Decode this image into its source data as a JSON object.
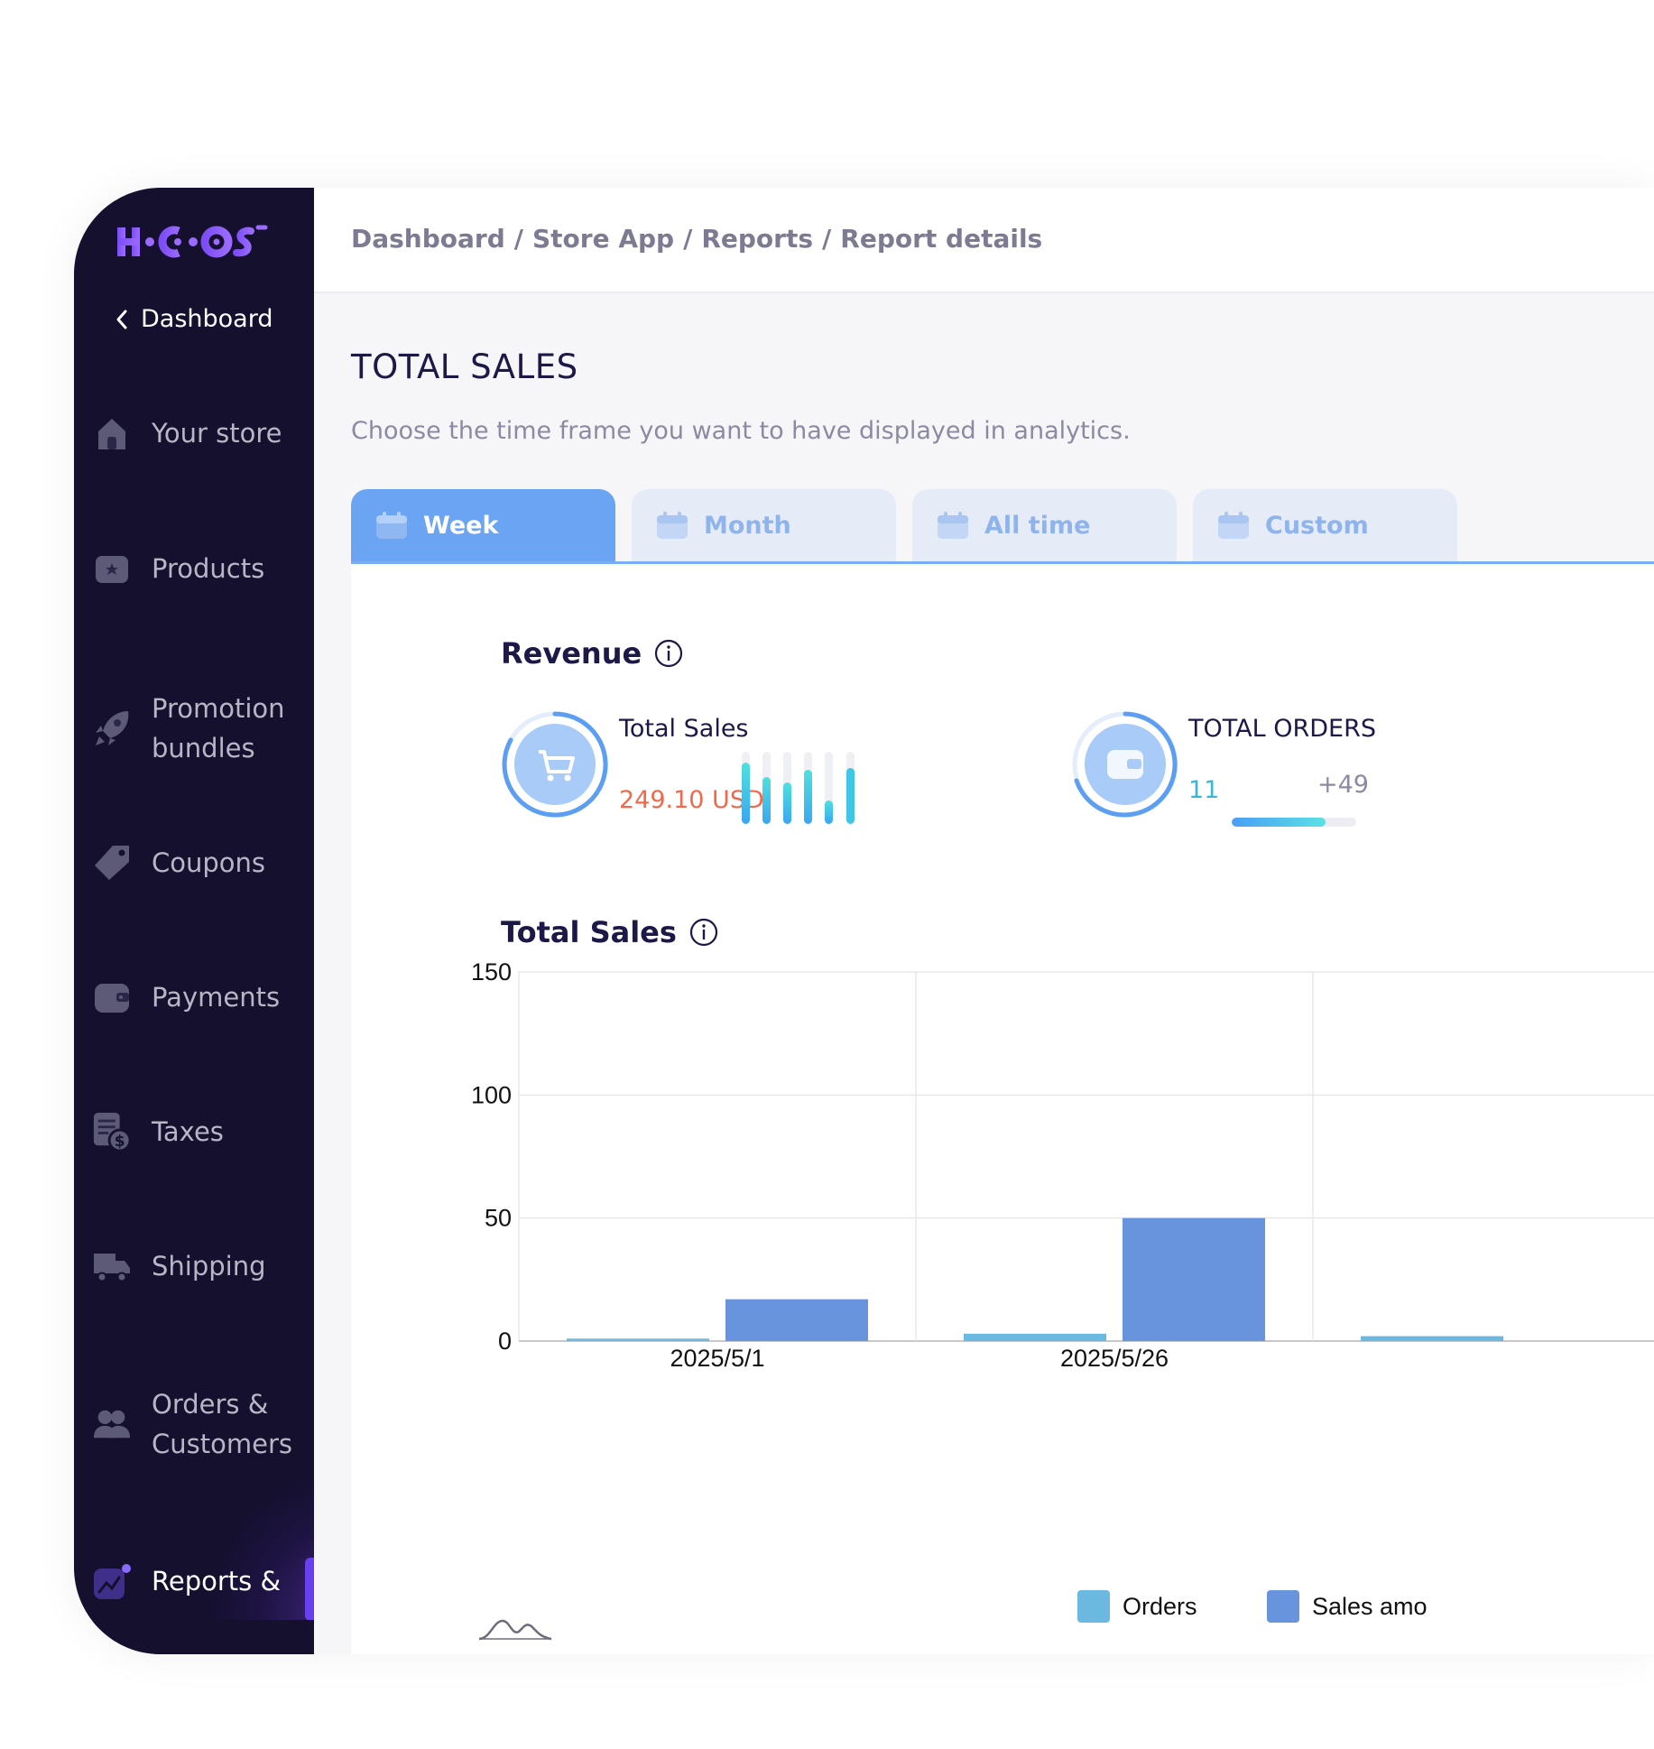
{
  "logo": {
    "text": "HOCOOS"
  },
  "sidebar": {
    "back_label": "Dashboard",
    "items": [
      {
        "label": "Your store",
        "icon": "house-icon"
      },
      {
        "label": "Products",
        "icon": "product-box-icon"
      },
      {
        "label": "Promotion\nbundles",
        "icon": "rocket-icon"
      },
      {
        "label": "Coupons",
        "icon": "tag-icon"
      },
      {
        "label": "Payments",
        "icon": "wallet-icon"
      },
      {
        "label": "Taxes",
        "icon": "tax-document-icon"
      },
      {
        "label": "Shipping",
        "icon": "truck-icon"
      },
      {
        "label": "Orders &\nCustomers",
        "icon": "people-icon"
      },
      {
        "label": "Reports &",
        "icon": "chart-line-icon",
        "active": true
      }
    ]
  },
  "breadcrumb": [
    "Dashboard",
    "/",
    "Store App",
    "/",
    "Reports",
    "/",
    "Report details"
  ],
  "page": {
    "title": "TOTAL SALES",
    "subtitle": "Choose the time frame you want to have displayed in analytics."
  },
  "tabs": [
    {
      "label": "Week",
      "active": true
    },
    {
      "label": "Month",
      "active": false
    },
    {
      "label": "All time",
      "active": false
    },
    {
      "label": "Custom",
      "active": false
    }
  ],
  "revenue": {
    "title": "Revenue",
    "total_sales": {
      "label": "Total Sales",
      "value": "249.10 USD"
    },
    "total_orders": {
      "label": "TOTAL ORDERS",
      "value": "11",
      "delta": "+49",
      "progress": 0.75
    }
  },
  "colors": {
    "accent": "#6aa4f3",
    "sidebar_bg": "#14102e",
    "orders_series": "#6bb9e0",
    "sales_series": "#6894dd",
    "sales_value": "#ef6a4c"
  },
  "sales_chart": {
    "title": "Total Sales",
    "legend": [
      "Orders",
      "Sales amo"
    ]
  },
  "chart_data": {
    "type": "bar",
    "categories": [
      "2025/5/1",
      "2025/5/26",
      ""
    ],
    "series": [
      {
        "name": "Orders",
        "values": [
          1,
          3,
          2
        ]
      },
      {
        "name": "Sales amo",
        "values": [
          17,
          50,
          null
        ]
      }
    ],
    "yticks": [
      0,
      50,
      100,
      150
    ],
    "ylim": [
      0,
      150
    ],
    "grid": true,
    "legend_position": "bottom"
  }
}
